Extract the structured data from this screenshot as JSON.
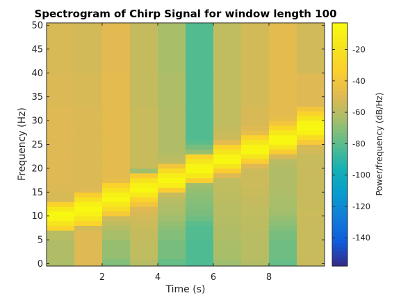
{
  "chart_data": {
    "type": "heatmap",
    "title": "Spectrogram of Chirp Signal for window length 100",
    "xlabel": "Time (s)",
    "ylabel": "Frequency (Hz)",
    "colorbar_label": "Power/frequency (dB/Hz)",
    "colormap": "parula",
    "xlim": [
      0,
      10
    ],
    "ylim": [
      -0.5,
      50.5
    ],
    "clim": [
      -158,
      -3
    ],
    "x_ticks": [
      2,
      4,
      6,
      8
    ],
    "y_ticks": [
      0,
      5,
      10,
      15,
      20,
      25,
      30,
      35,
      40,
      45,
      50
    ],
    "colorbar_ticks": [
      -20,
      -40,
      -60,
      -80,
      -100,
      -120,
      -140
    ],
    "time_bins": [
      0.5,
      1.5,
      2.5,
      3.5,
      4.5,
      5.5,
      6.5,
      7.5,
      8.5,
      9.5
    ],
    "frequency_bands": [
      {
        "from": 0,
        "to": 1,
        "levels": [
          -63,
          -50,
          -72,
          -60,
          -78,
          -83,
          -66,
          -61,
          -78,
          -56
        ]
      },
      {
        "from": 1,
        "to": 5,
        "levels": [
          -62,
          -50,
          -68,
          -58,
          -74,
          -83,
          -64,
          -60,
          -76,
          -56
        ]
      },
      {
        "from": 5,
        "to": 7,
        "levels": [
          -60,
          -50,
          -64,
          -57,
          -72,
          -82,
          -62,
          -60,
          -74,
          -56
        ]
      },
      {
        "from": 7,
        "to": 8,
        "levels": [
          -30,
          -54,
          -61,
          -56,
          -70,
          -82,
          -62,
          -59,
          -72,
          -56
        ]
      },
      {
        "from": 8,
        "to": 9,
        "levels": [
          -18,
          -30,
          -58,
          -55,
          -68,
          -80,
          -61,
          -59,
          -70,
          -56
        ]
      },
      {
        "from": 9,
        "to": 10,
        "levels": [
          -8,
          -18,
          -55,
          -54,
          -66,
          -76,
          -61,
          -59,
          -68,
          -56
        ]
      },
      {
        "from": 10,
        "to": 11,
        "levels": [
          -5,
          -10,
          -38,
          -52,
          -64,
          -74,
          -60,
          -58,
          -66,
          -55
        ]
      },
      {
        "from": 11,
        "to": 12,
        "levels": [
          -15,
          -5,
          -25,
          -50,
          -63,
          -73,
          -60,
          -58,
          -65,
          -56
        ]
      },
      {
        "from": 12,
        "to": 13,
        "levels": [
          -30,
          -10,
          -16,
          -40,
          -62,
          -72,
          -60,
          -57,
          -64,
          -56
        ]
      },
      {
        "from": 13,
        "to": 14,
        "levels": [
          -52,
          -22,
          -6,
          -30,
          -60,
          -71,
          -59,
          -57,
          -64,
          -56
        ]
      },
      {
        "from": 14,
        "to": 15,
        "levels": [
          -52,
          -35,
          -10,
          -16,
          -56,
          -70,
          -59,
          -56,
          -63,
          -56
        ]
      },
      {
        "from": 15,
        "to": 16,
        "levels": [
          -51,
          -50,
          -20,
          -6,
          -35,
          -68,
          -58,
          -56,
          -63,
          -56
        ]
      },
      {
        "from": 16,
        "to": 17,
        "levels": [
          -51,
          -51,
          -32,
          -10,
          -12,
          -66,
          -58,
          -55,
          -62,
          -56
        ]
      },
      {
        "from": 17,
        "to": 18,
        "levels": [
          -50,
          -51,
          -46,
          -20,
          -6,
          -35,
          -58,
          -55,
          -62,
          -56
        ]
      },
      {
        "from": 18,
        "to": 19,
        "levels": [
          -50,
          -51,
          -48,
          -36,
          -12,
          -15,
          -50,
          -55,
          -62,
          -56
        ]
      },
      {
        "from": 19,
        "to": 20,
        "levels": [
          -50,
          -51,
          -48,
          -66,
          -25,
          -6,
          -35,
          -55,
          -62,
          -56
        ]
      },
      {
        "from": 20,
        "to": 21,
        "levels": [
          -50,
          -51,
          -48,
          -56,
          -40,
          -8,
          -18,
          -50,
          -61,
          -56
        ]
      },
      {
        "from": 21,
        "to": 22,
        "levels": [
          -50,
          -51,
          -48,
          -56,
          -58,
          -18,
          -6,
          -35,
          -60,
          -56
        ]
      },
      {
        "from": 22,
        "to": 23,
        "levels": [
          -50,
          -51,
          -48,
          -56,
          -60,
          -30,
          -8,
          -18,
          -52,
          -56
        ]
      },
      {
        "from": 23,
        "to": 24,
        "levels": [
          -50,
          -51,
          -48,
          -56,
          -62,
          -68,
          -18,
          -6,
          -36,
          -54
        ]
      },
      {
        "from": 24,
        "to": 25,
        "levels": [
          -50,
          -51,
          -48,
          -56,
          -62,
          -74,
          -30,
          -8,
          -18,
          -52
        ]
      },
      {
        "from": 25,
        "to": 26,
        "levels": [
          -50,
          -51,
          -48,
          -56,
          -62,
          -80,
          -48,
          -18,
          -6,
          -38
        ]
      },
      {
        "from": 26,
        "to": 27,
        "levels": [
          -50,
          -51,
          -48,
          -56,
          -62,
          -82,
          -55,
          -30,
          -6,
          -24
        ]
      },
      {
        "from": 27,
        "to": 28,
        "levels": [
          -50,
          -51,
          -48,
          -56,
          -62,
          -82,
          -56,
          -46,
          -16,
          -10
        ]
      },
      {
        "from": 28,
        "to": 29,
        "levels": [
          -50,
          -51,
          -48,
          -56,
          -62,
          -82,
          -57,
          -50,
          -28,
          -6
        ]
      },
      {
        "from": 29,
        "to": 30,
        "levels": [
          -50,
          -51,
          -48,
          -56,
          -62,
          -82,
          -58,
          -52,
          -40,
          -8
        ]
      },
      {
        "from": 30,
        "to": 31,
        "levels": [
          -50,
          -51,
          -48,
          -56,
          -62,
          -82,
          -58,
          -52,
          -46,
          -18
        ]
      },
      {
        "from": 31,
        "to": 32,
        "levels": [
          -50,
          -51,
          -48,
          -56,
          -62,
          -82,
          -58,
          -52,
          -48,
          -30
        ]
      },
      {
        "from": 32,
        "to": 33,
        "levels": [
          -50,
          -51,
          -48,
          -56,
          -62,
          -82,
          -58,
          -52,
          -48,
          -40
        ]
      },
      {
        "from": 33,
        "to": 40,
        "levels": [
          -51,
          -52,
          -48,
          -57,
          -63,
          -82,
          -58,
          -53,
          -48,
          -50
        ]
      },
      {
        "from": 40,
        "to": 50,
        "levels": [
          -52,
          -53,
          -49,
          -57,
          -64,
          -82,
          -58,
          -53,
          -48,
          -54
        ]
      }
    ]
  }
}
